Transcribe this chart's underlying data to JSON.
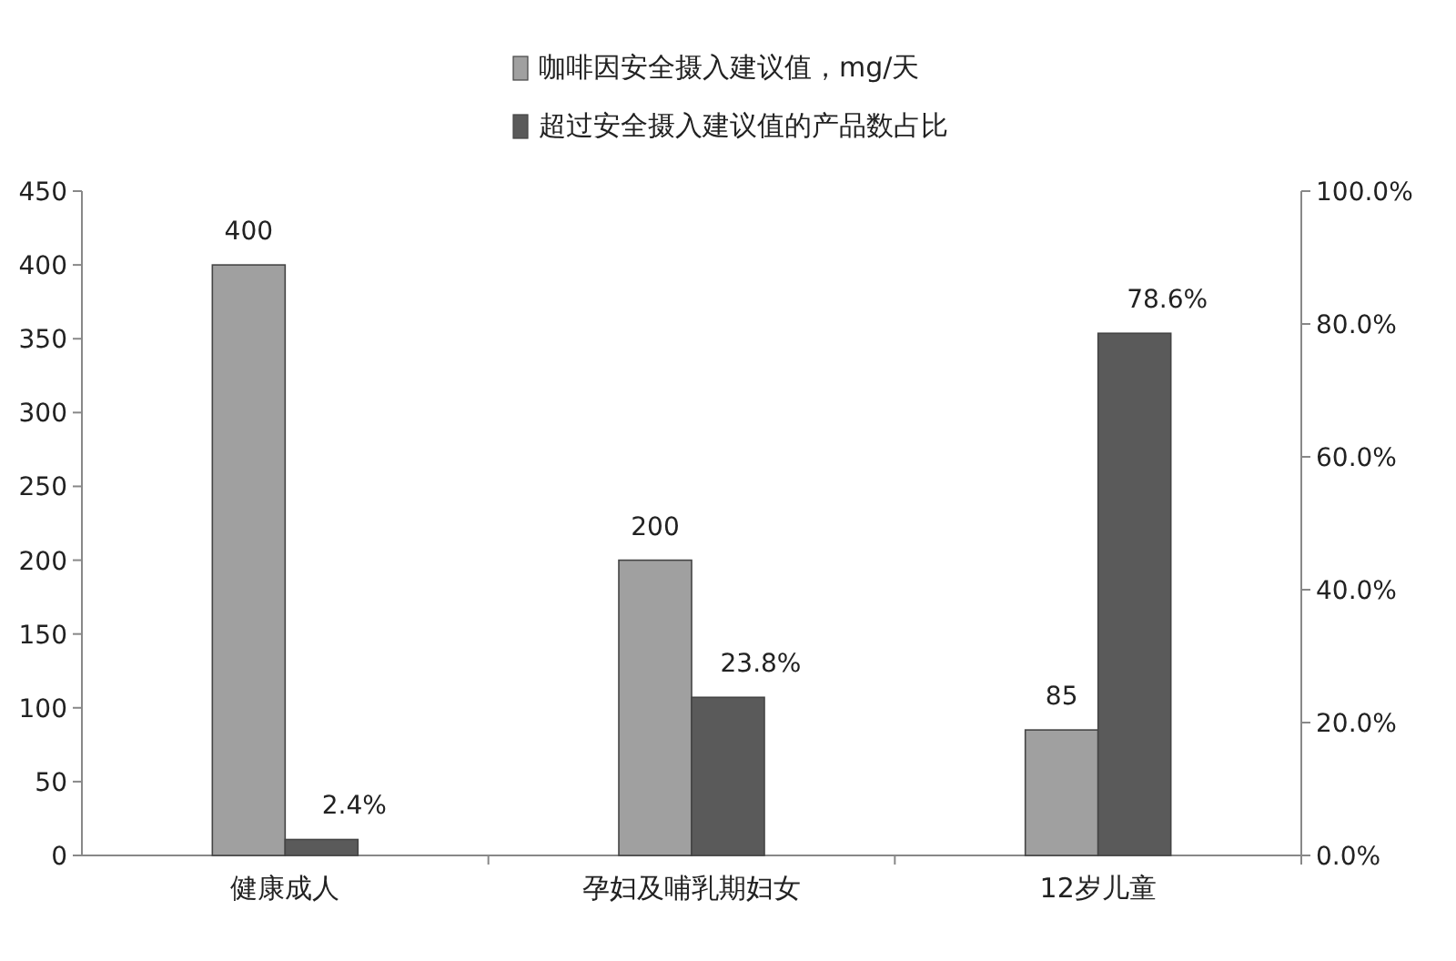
{
  "chart_data": {
    "type": "bar",
    "categories": [
      "健康成人",
      "孕妇及哺乳期妇女",
      "12岁儿童"
    ],
    "series": [
      {
        "name": "咖啡因安全摄入建议值，mg/天",
        "color": "#a0a0a0",
        "values": [
          400,
          200,
          85
        ],
        "value_labels": [
          "400",
          "200",
          "85"
        ]
      },
      {
        "name": "超过安全摄入建议值的产品数占比",
        "color": "#5a5a5a",
        "axis": "y2",
        "values": [
          2.4,
          23.8,
          78.6
        ],
        "value_labels": [
          "2.4%",
          "23.8%",
          "78.6%"
        ]
      }
    ],
    "ylim": [
      0,
      450
    ],
    "yticks": [
      0,
      50,
      100,
      150,
      200,
      250,
      300,
      350,
      400,
      450
    ],
    "y2lim": [
      0,
      100
    ],
    "y2ticks": [
      {
        "value": 0,
        "label": "0.0%"
      },
      {
        "value": 20,
        "label": "20.0%"
      },
      {
        "value": 40,
        "label": "40.0%"
      },
      {
        "value": 60,
        "label": "60.0%"
      },
      {
        "value": 80,
        "label": "80.0%"
      },
      {
        "value": 100,
        "label": "100.0%"
      }
    ],
    "legend": "top",
    "grid": false
  }
}
